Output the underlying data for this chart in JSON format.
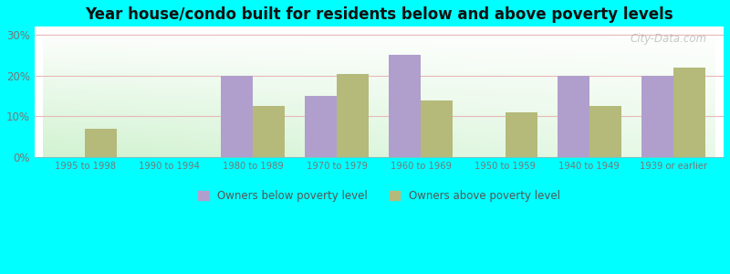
{
  "title": "Year house/condo built for residents below and above poverty levels",
  "categories": [
    "1995 to 1998",
    "1990 to 1994",
    "1980 to 1989",
    "1970 to 1979",
    "1960 to 1969",
    "1950 to 1959",
    "1940 to 1949",
    "1939 or earlier"
  ],
  "below_poverty": [
    0,
    0,
    20,
    15,
    25,
    0,
    20,
    20
  ],
  "above_poverty": [
    7,
    0,
    12.5,
    20.5,
    14,
    11,
    12.5,
    22
  ],
  "below_color": "#b09fcc",
  "above_color": "#b5ba7a",
  "ylabel_ticks": [
    0,
    10,
    20,
    30
  ],
  "ylabel_labels": [
    "0%",
    "10%",
    "20%",
    "30%"
  ],
  "ylim": [
    0,
    32
  ],
  "outer_bg": "#00ffff",
  "legend_below_label": "Owners below poverty level",
  "legend_above_label": "Owners above poverty level",
  "watermark": "City-Data.com",
  "bar_width": 0.38,
  "grid_color": "#e8b8b8",
  "tick_color": "#777777",
  "title_fontsize": 12
}
